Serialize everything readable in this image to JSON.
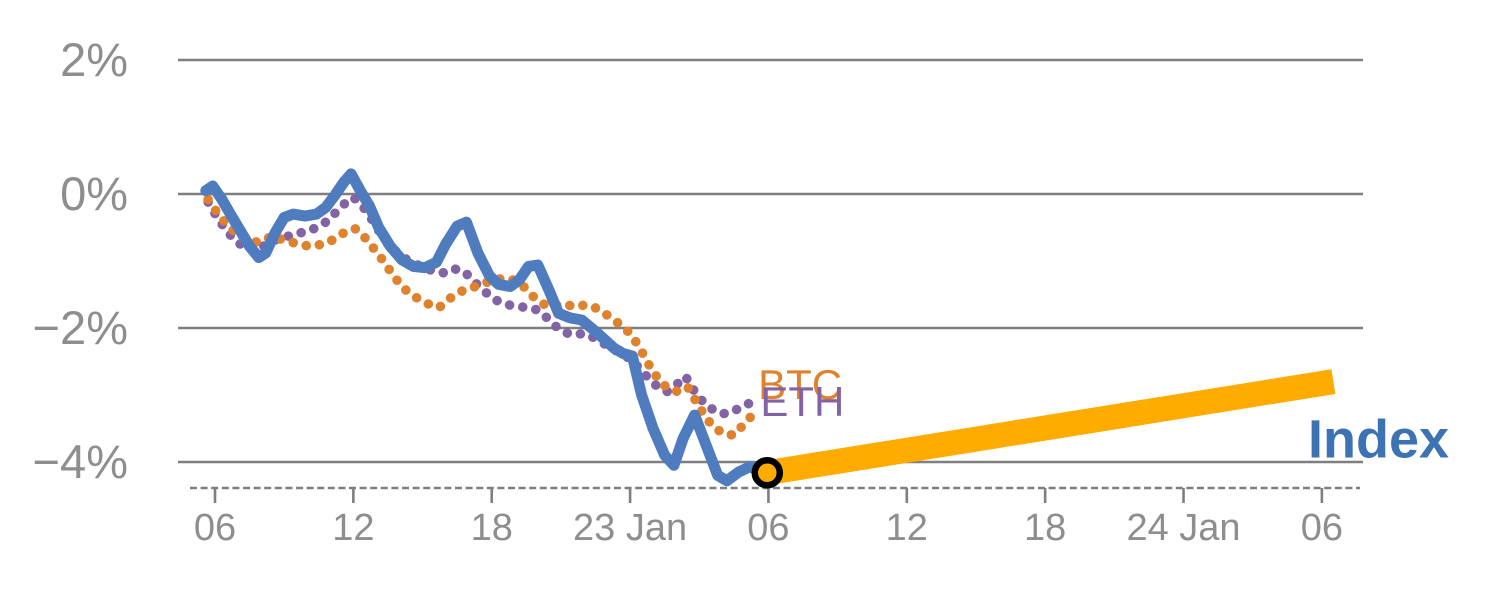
{
  "chart_data": {
    "type": "line",
    "title": "",
    "description": "Intraday percent-change chart comparing BTC, ETH and an Index, with a projected Index path",
    "x_axis": {
      "kind": "time-hours",
      "range_hours": [
        4.4,
        55.9
      ],
      "baseline_style": "dashed",
      "ticks": [
        {
          "h": 6,
          "label": "06"
        },
        {
          "h": 12,
          "label": "12"
        },
        {
          "h": 18,
          "label": "18"
        },
        {
          "h": 24,
          "label": "23 Jan"
        },
        {
          "h": 30,
          "label": "06"
        },
        {
          "h": 36,
          "label": "12"
        },
        {
          "h": 42,
          "label": "18"
        },
        {
          "h": 48,
          "label": "24 Jan"
        },
        {
          "h": 54,
          "label": "06"
        }
      ]
    },
    "y_axis": {
      "unit": "%",
      "gridlines": true,
      "range": [
        -4.6,
        2.6
      ],
      "ticks": [
        {
          "value": 2,
          "label": "2%"
        },
        {
          "value": 0,
          "label": "0%"
        },
        {
          "value": -2,
          "label": "−2%"
        },
        {
          "value": -4,
          "label": "−4%"
        }
      ]
    },
    "colors": {
      "grid": "#7f7f7f",
      "axis_text": "#8e8e8e",
      "background": "#ffffff",
      "index_line": "#4e7cbe",
      "index_label": "#3e73b3",
      "btc": "#e0812d",
      "eth": "#8263a4",
      "projection": "#ffab00",
      "marker_ring": "#000000"
    },
    "series": [
      {
        "name": "ETH",
        "style": "dotted",
        "color": "#8263a4",
        "width": 9.5,
        "points": [
          [
            5.7,
            -0.12
          ],
          [
            6.1,
            -0.35
          ],
          [
            6.5,
            -0.55
          ],
          [
            6.9,
            -0.7
          ],
          [
            7.3,
            -0.8
          ],
          [
            7.7,
            -0.85
          ],
          [
            8.1,
            -0.78
          ],
          [
            8.5,
            -0.7
          ],
          [
            8.9,
            -0.65
          ],
          [
            9.3,
            -0.62
          ],
          [
            9.7,
            -0.58
          ],
          [
            10.1,
            -0.55
          ],
          [
            10.5,
            -0.48
          ],
          [
            10.9,
            -0.4
          ],
          [
            11.3,
            -0.25
          ],
          [
            11.7,
            -0.12
          ],
          [
            12.0,
            -0.05
          ],
          [
            12.4,
            -0.18
          ],
          [
            12.8,
            -0.38
          ],
          [
            13.2,
            -0.6
          ],
          [
            13.6,
            -0.78
          ],
          [
            14.0,
            -0.9
          ],
          [
            14.4,
            -1.0
          ],
          [
            14.8,
            -1.06
          ],
          [
            15.2,
            -1.12
          ],
          [
            15.6,
            -1.16
          ],
          [
            16.0,
            -1.18
          ],
          [
            16.4,
            -1.12
          ],
          [
            16.8,
            -1.15
          ],
          [
            17.2,
            -1.3
          ],
          [
            17.6,
            -1.42
          ],
          [
            18.0,
            -1.55
          ],
          [
            18.4,
            -1.62
          ],
          [
            18.8,
            -1.66
          ],
          [
            19.2,
            -1.68
          ],
          [
            19.6,
            -1.7
          ],
          [
            20.0,
            -1.73
          ],
          [
            20.4,
            -1.85
          ],
          [
            20.8,
            -1.98
          ],
          [
            21.2,
            -2.07
          ],
          [
            21.6,
            -2.1
          ],
          [
            22.0,
            -2.08
          ],
          [
            22.4,
            -2.14
          ],
          [
            22.8,
            -2.22
          ],
          [
            23.2,
            -2.3
          ],
          [
            23.6,
            -2.38
          ],
          [
            24.0,
            -2.46
          ],
          [
            24.4,
            -2.6
          ],
          [
            24.8,
            -2.75
          ],
          [
            25.2,
            -2.88
          ],
          [
            25.6,
            -2.95
          ],
          [
            26.0,
            -2.85
          ],
          [
            26.4,
            -2.72
          ],
          [
            26.8,
            -2.95
          ],
          [
            27.2,
            -3.12
          ],
          [
            27.6,
            -3.22
          ],
          [
            28.0,
            -3.28
          ],
          [
            28.4,
            -3.26
          ],
          [
            28.8,
            -3.18
          ],
          [
            29.2,
            -3.12
          ],
          [
            29.6,
            -3.08
          ]
        ]
      },
      {
        "name": "BTC",
        "style": "dotted",
        "color": "#e0812d",
        "width": 9.5,
        "points": [
          [
            5.7,
            -0.08
          ],
          [
            6.1,
            -0.28
          ],
          [
            6.5,
            -0.45
          ],
          [
            6.9,
            -0.58
          ],
          [
            7.3,
            -0.68
          ],
          [
            7.7,
            -0.72
          ],
          [
            8.1,
            -0.7
          ],
          [
            8.5,
            -0.62
          ],
          [
            8.9,
            -0.68
          ],
          [
            9.3,
            -0.72
          ],
          [
            9.7,
            -0.75
          ],
          [
            10.1,
            -0.78
          ],
          [
            10.5,
            -0.76
          ],
          [
            10.9,
            -0.72
          ],
          [
            11.3,
            -0.65
          ],
          [
            11.7,
            -0.55
          ],
          [
            12.1,
            -0.52
          ],
          [
            12.5,
            -0.65
          ],
          [
            12.9,
            -0.82
          ],
          [
            13.3,
            -1.0
          ],
          [
            13.7,
            -1.2
          ],
          [
            14.1,
            -1.38
          ],
          [
            14.5,
            -1.5
          ],
          [
            14.9,
            -1.58
          ],
          [
            15.3,
            -1.65
          ],
          [
            15.7,
            -1.7
          ],
          [
            16.1,
            -1.58
          ],
          [
            16.5,
            -1.48
          ],
          [
            16.9,
            -1.42
          ],
          [
            17.3,
            -1.38
          ],
          [
            17.7,
            -1.33
          ],
          [
            18.1,
            -1.28
          ],
          [
            18.5,
            -1.26
          ],
          [
            18.9,
            -1.28
          ],
          [
            19.3,
            -1.35
          ],
          [
            19.7,
            -1.5
          ],
          [
            20.1,
            -1.62
          ],
          [
            20.5,
            -1.68
          ],
          [
            20.9,
            -1.65
          ],
          [
            21.3,
            -1.66
          ],
          [
            21.7,
            -1.68
          ],
          [
            22.1,
            -1.65
          ],
          [
            22.5,
            -1.7
          ],
          [
            22.9,
            -1.78
          ],
          [
            23.3,
            -1.88
          ],
          [
            23.7,
            -1.98
          ],
          [
            24.1,
            -2.12
          ],
          [
            24.5,
            -2.35
          ],
          [
            24.9,
            -2.6
          ],
          [
            25.3,
            -2.8
          ],
          [
            25.7,
            -2.92
          ],
          [
            26.1,
            -2.95
          ],
          [
            26.5,
            -2.88
          ],
          [
            26.9,
            -3.12
          ],
          [
            27.3,
            -3.35
          ],
          [
            27.7,
            -3.5
          ],
          [
            28.1,
            -3.58
          ],
          [
            28.5,
            -3.6
          ],
          [
            28.9,
            -3.45
          ],
          [
            29.3,
            -3.3
          ],
          [
            29.6,
            -3.25
          ]
        ]
      },
      {
        "name": "Index",
        "style": "solid",
        "color": "#4e7cbe",
        "width": 11,
        "points": [
          [
            5.6,
            0.05
          ],
          [
            5.9,
            0.12
          ],
          [
            6.3,
            -0.08
          ],
          [
            6.7,
            -0.32
          ],
          [
            7.1,
            -0.55
          ],
          [
            7.5,
            -0.78
          ],
          [
            7.9,
            -0.95
          ],
          [
            8.2,
            -0.88
          ],
          [
            8.6,
            -0.58
          ],
          [
            9.0,
            -0.35
          ],
          [
            9.4,
            -0.3
          ],
          [
            9.9,
            -0.33
          ],
          [
            10.4,
            -0.3
          ],
          [
            10.8,
            -0.2
          ],
          [
            11.2,
            -0.02
          ],
          [
            11.6,
            0.18
          ],
          [
            11.9,
            0.3
          ],
          [
            12.3,
            0.05
          ],
          [
            12.7,
            -0.18
          ],
          [
            13.1,
            -0.5
          ],
          [
            13.6,
            -0.78
          ],
          [
            14.1,
            -0.98
          ],
          [
            14.6,
            -1.08
          ],
          [
            15.1,
            -1.1
          ],
          [
            15.6,
            -1.02
          ],
          [
            16.0,
            -0.75
          ],
          [
            16.5,
            -0.48
          ],
          [
            16.9,
            -0.42
          ],
          [
            17.4,
            -0.88
          ],
          [
            17.9,
            -1.22
          ],
          [
            18.3,
            -1.35
          ],
          [
            18.8,
            -1.38
          ],
          [
            19.2,
            -1.28
          ],
          [
            19.6,
            -1.08
          ],
          [
            20.0,
            -1.06
          ],
          [
            20.5,
            -1.45
          ],
          [
            20.9,
            -1.78
          ],
          [
            21.4,
            -1.85
          ],
          [
            21.9,
            -1.88
          ],
          [
            22.6,
            -2.08
          ],
          [
            23.3,
            -2.3
          ],
          [
            23.7,
            -2.38
          ],
          [
            24.1,
            -2.42
          ],
          [
            24.5,
            -3.0
          ],
          [
            25.0,
            -3.5
          ],
          [
            25.5,
            -3.9
          ],
          [
            25.9,
            -4.05
          ],
          [
            26.3,
            -3.65
          ],
          [
            26.8,
            -3.3
          ],
          [
            27.3,
            -3.75
          ],
          [
            27.8,
            -4.2
          ],
          [
            28.2,
            -4.28
          ],
          [
            28.7,
            -4.15
          ],
          [
            29.2,
            -4.07
          ],
          [
            29.7,
            -4.15
          ]
        ]
      },
      {
        "name": "Index projection",
        "style": "solid-thick",
        "color": "#ffab00",
        "width": 25,
        "points": [
          [
            29.95,
            -4.16
          ],
          [
            54.5,
            -2.8
          ]
        ]
      }
    ],
    "marker": {
      "series": "Index",
      "h": 29.95,
      "value": -4.16,
      "fill": "#ffab00",
      "ring_color": "#000000",
      "radius": 12.5,
      "ring_width": 6.5
    },
    "labels": [
      {
        "text": "BTC",
        "color": "#e0812d",
        "h": 29.55,
        "value": -3.06,
        "size": 42,
        "weight": "normal"
      },
      {
        "text": "ETH",
        "color": "#8263a4",
        "h": 29.65,
        "value": -3.31,
        "size": 42,
        "weight": "normal"
      },
      {
        "text": "Index",
        "color": "#3e73b3",
        "h": 53.4,
        "value": -3.93,
        "size": 54,
        "weight": "bold"
      }
    ]
  }
}
